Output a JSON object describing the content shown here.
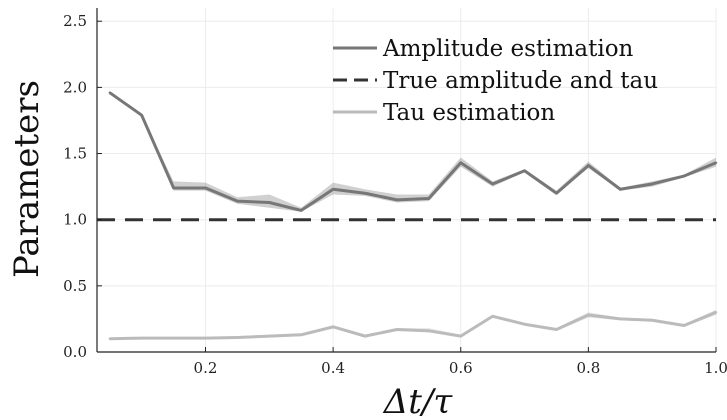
{
  "chart_data": {
    "type": "line",
    "xlabel": "Δt/τ",
    "ylabel": "Parameters",
    "xlim": [
      0.03,
      1.0
    ],
    "ylim": [
      0.0,
      2.6
    ],
    "x_ticks": [
      0.2,
      0.4,
      0.6,
      0.8,
      1.0
    ],
    "x_tick_labels": [
      "0.2",
      "0.4",
      "0.6",
      "0.8",
      "1.0"
    ],
    "y_ticks": [
      0.0,
      0.5,
      1.0,
      1.5,
      2.0,
      2.5
    ],
    "y_tick_labels": [
      "0.0",
      "0.5",
      "1.0",
      "1.5",
      "2.0",
      "2.5"
    ],
    "grid": true,
    "legend_position": "top-right",
    "series": [
      {
        "name": "Amplitude estimation",
        "color": "#777777",
        "style": "solid",
        "x": [
          0.05,
          0.1,
          0.15,
          0.2,
          0.25,
          0.3,
          0.35,
          0.4,
          0.45,
          0.5,
          0.55,
          0.6,
          0.65,
          0.7,
          0.75,
          0.8,
          0.85,
          0.9,
          0.95,
          1.0
        ],
        "y": [
          1.96,
          1.79,
          1.24,
          1.24,
          1.14,
          1.13,
          1.07,
          1.23,
          1.2,
          1.15,
          1.16,
          1.43,
          1.27,
          1.37,
          1.2,
          1.41,
          1.23,
          1.27,
          1.33,
          1.43
        ],
        "band_low": [
          1.96,
          1.79,
          1.22,
          1.22,
          1.12,
          1.09,
          1.06,
          1.19,
          1.18,
          1.13,
          1.14,
          1.4,
          1.25,
          1.36,
          1.19,
          1.39,
          1.22,
          1.25,
          1.32,
          1.4
        ],
        "band_high": [
          1.96,
          1.79,
          1.29,
          1.28,
          1.17,
          1.19,
          1.09,
          1.28,
          1.23,
          1.19,
          1.19,
          1.47,
          1.29,
          1.38,
          1.22,
          1.44,
          1.24,
          1.29,
          1.34,
          1.47
        ]
      },
      {
        "name": "True amplitude and tau",
        "color": "#333333",
        "style": "dashed",
        "x": [
          0.03,
          1.0
        ],
        "y": [
          1.0,
          1.0
        ]
      },
      {
        "name": "Tau estimation",
        "color": "#bbbbbb",
        "style": "solid",
        "x": [
          0.05,
          0.1,
          0.15,
          0.2,
          0.25,
          0.3,
          0.35,
          0.4,
          0.45,
          0.5,
          0.55,
          0.6,
          0.65,
          0.7,
          0.75,
          0.8,
          0.85,
          0.9,
          0.95,
          1.0
        ],
        "y": [
          0.1,
          0.105,
          0.105,
          0.105,
          0.11,
          0.12,
          0.13,
          0.19,
          0.12,
          0.17,
          0.16,
          0.12,
          0.27,
          0.21,
          0.17,
          0.28,
          0.25,
          0.24,
          0.2,
          0.3
        ],
        "band_low": [
          0.09,
          0.1,
          0.1,
          0.1,
          0.1,
          0.11,
          0.12,
          0.18,
          0.11,
          0.16,
          0.15,
          0.11,
          0.26,
          0.2,
          0.16,
          0.26,
          0.24,
          0.23,
          0.19,
          0.28
        ],
        "band_high": [
          0.11,
          0.11,
          0.11,
          0.11,
          0.12,
          0.13,
          0.14,
          0.2,
          0.13,
          0.18,
          0.18,
          0.13,
          0.28,
          0.22,
          0.18,
          0.3,
          0.26,
          0.25,
          0.21,
          0.32
        ]
      }
    ]
  }
}
